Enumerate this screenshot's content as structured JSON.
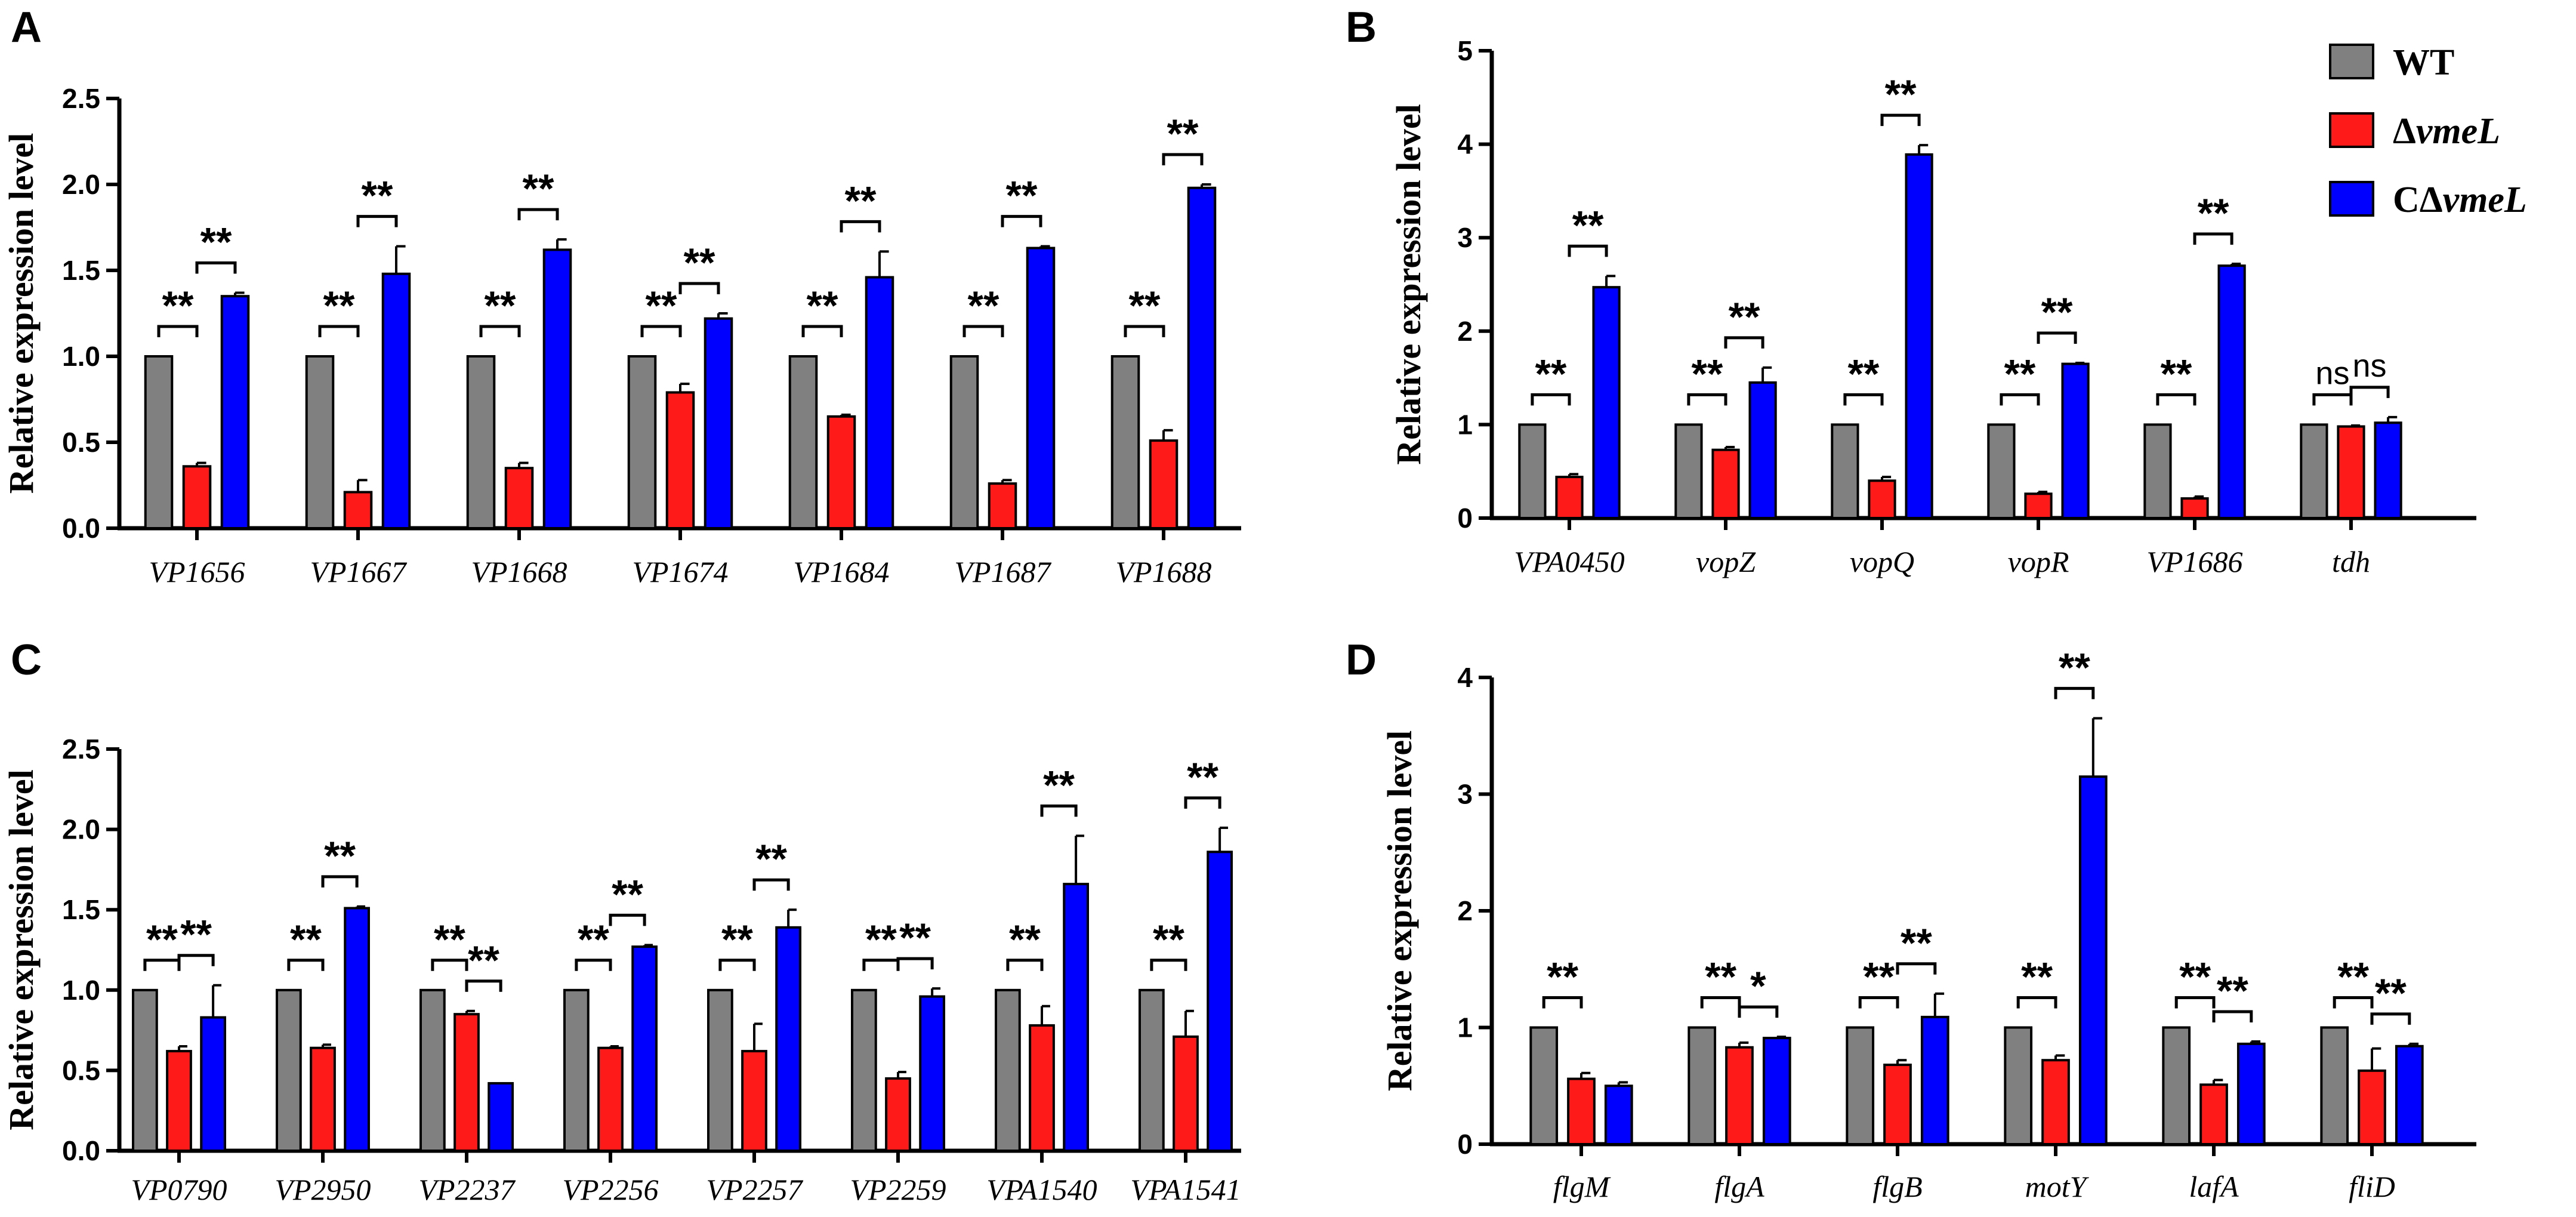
{
  "colors": {
    "WT": "#808080",
    "dvmeL": "#ff1a1a",
    "CdvmeL": "#0000ff",
    "axis": "#000000"
  },
  "legend": {
    "items": [
      {
        "key": "WT",
        "prefix": "WT",
        "ital": ""
      },
      {
        "key": "dvmeL",
        "prefix": "Δ",
        "ital": "vmeL"
      },
      {
        "key": "CdvmeL",
        "prefix": "CΔ",
        "ital": "vmeL"
      }
    ]
  },
  "chart_data": [
    {
      "panel": "A",
      "type": "bar",
      "ylabel": "Relative expression level",
      "ylim": [
        0,
        2.5
      ],
      "yticks": [
        "0.0",
        "0.5",
        "1.0",
        "1.5",
        "2.0",
        "2.5"
      ],
      "categories": [
        "VP1656",
        "VP1667",
        "VP1668",
        "VP1674",
        "VP1684",
        "VP1687",
        "VP1688"
      ],
      "series": [
        {
          "name": "WT",
          "values": [
            1.0,
            1.0,
            1.0,
            1.0,
            1.0,
            1.0,
            1.0
          ],
          "errors": [
            0,
            0,
            0,
            0,
            0,
            0,
            0
          ]
        },
        {
          "name": "ΔvmeL",
          "values": [
            0.36,
            0.21,
            0.35,
            0.79,
            0.65,
            0.26,
            0.51
          ],
          "errors": [
            0.02,
            0.07,
            0.03,
            0.05,
            0.01,
            0.02,
            0.06
          ]
        },
        {
          "name": "CΔvmeL",
          "values": [
            1.35,
            1.48,
            1.62,
            1.22,
            1.46,
            1.63,
            1.98
          ],
          "errors": [
            0.02,
            0.16,
            0.06,
            0.03,
            0.15,
            0.01,
            0.02
          ]
        }
      ],
      "significance": [
        [
          "**",
          "**"
        ],
        [
          "**",
          "**"
        ],
        [
          "**",
          "**"
        ],
        [
          "**",
          "**"
        ],
        [
          "**",
          "**"
        ],
        [
          "**",
          "**"
        ],
        [
          "**",
          "**"
        ]
      ]
    },
    {
      "panel": "B",
      "type": "bar",
      "ylabel": "Relative expression level",
      "ylim": [
        0,
        5
      ],
      "yticks": [
        "0",
        "1",
        "2",
        "3",
        "4",
        "5"
      ],
      "categories": [
        "VPA0450",
        "vopZ",
        "vopQ",
        "vopR",
        "VP1686",
        "tdh"
      ],
      "series": [
        {
          "name": "WT",
          "values": [
            1.0,
            1.0,
            1.0,
            1.0,
            1.0,
            1.0
          ],
          "errors": [
            0,
            0,
            0,
            0,
            0,
            0
          ]
        },
        {
          "name": "ΔvmeL",
          "values": [
            0.44,
            0.73,
            0.4,
            0.26,
            0.21,
            0.98
          ],
          "errors": [
            0.03,
            0.03,
            0.04,
            0.02,
            0.02,
            0.01
          ]
        },
        {
          "name": "CΔvmeL",
          "values": [
            2.47,
            1.45,
            3.89,
            1.65,
            2.7,
            1.02
          ],
          "errors": [
            0.12,
            0.16,
            0.1,
            0.01,
            0.02,
            0.06
          ]
        }
      ],
      "significance": [
        [
          "**",
          "**"
        ],
        [
          "**",
          "**"
        ],
        [
          "**",
          "**"
        ],
        [
          "**",
          "**"
        ],
        [
          "**",
          "**"
        ],
        [
          "ns",
          "ns"
        ]
      ]
    },
    {
      "panel": "C",
      "type": "bar",
      "ylabel": "Relative expression level",
      "ylim": [
        0,
        2.5
      ],
      "yticks": [
        "0.0",
        "0.5",
        "1.0",
        "1.5",
        "2.0",
        "2.5"
      ],
      "categories": [
        "VP0790",
        "VP2950",
        "VP2237",
        "VP2256",
        "VP2257",
        "VP2259",
        "VPA1540",
        "VPA1541"
      ],
      "series": [
        {
          "name": "WT",
          "values": [
            1.0,
            1.0,
            1.0,
            1.0,
            1.0,
            1.0,
            1.0,
            1.0
          ],
          "errors": [
            0,
            0,
            0,
            0,
            0,
            0,
            0,
            0
          ]
        },
        {
          "name": "ΔvmeL",
          "values": [
            0.62,
            0.64,
            0.85,
            0.64,
            0.62,
            0.45,
            0.78,
            0.71
          ],
          "errors": [
            0.03,
            0.02,
            0.02,
            0.01,
            0.17,
            0.04,
            0.12,
            0.16
          ]
        },
        {
          "name": "CΔvmeL",
          "values": [
            0.83,
            1.51,
            0.42,
            1.27,
            1.39,
            0.96,
            1.66,
            1.86
          ],
          "errors": [
            0.2,
            0.01,
            0.0,
            0.01,
            0.11,
            0.05,
            0.3,
            0.15
          ]
        }
      ],
      "significance": [
        [
          "**",
          "**"
        ],
        [
          "**",
          "**"
        ],
        [
          "**",
          "**"
        ],
        [
          "**",
          "**"
        ],
        [
          "**",
          "**"
        ],
        [
          "**",
          "**"
        ],
        [
          "**",
          "**"
        ],
        [
          "**",
          "**"
        ]
      ]
    },
    {
      "panel": "D",
      "type": "bar",
      "ylabel": "Relative expression level",
      "ylim": [
        0,
        4
      ],
      "yticks": [
        "0",
        "1",
        "2",
        "3",
        "4"
      ],
      "categories": [
        "flgM",
        "flgA",
        "flgB",
        "motY",
        "lafA",
        "fliD"
      ],
      "series": [
        {
          "name": "WT",
          "values": [
            1.0,
            1.0,
            1.0,
            1.0,
            1.0,
            1.0
          ],
          "errors": [
            0,
            0,
            0,
            0,
            0,
            0
          ]
        },
        {
          "name": "ΔvmeL",
          "values": [
            0.56,
            0.83,
            0.68,
            0.72,
            0.51,
            0.63
          ],
          "errors": [
            0.05,
            0.04,
            0.04,
            0.04,
            0.04,
            0.19
          ]
        },
        {
          "name": "CΔvmeL",
          "values": [
            0.5,
            0.91,
            1.09,
            3.15,
            0.86,
            0.84
          ],
          "errors": [
            0.03,
            0.01,
            0.2,
            0.5,
            0.02,
            0.02
          ]
        }
      ],
      "significance": [
        [
          "**",
          ""
        ],
        [
          "**",
          "*"
        ],
        [
          "**",
          "**"
        ],
        [
          "**",
          "**"
        ],
        [
          "**",
          "**"
        ],
        [
          "**",
          "**"
        ]
      ]
    }
  ]
}
